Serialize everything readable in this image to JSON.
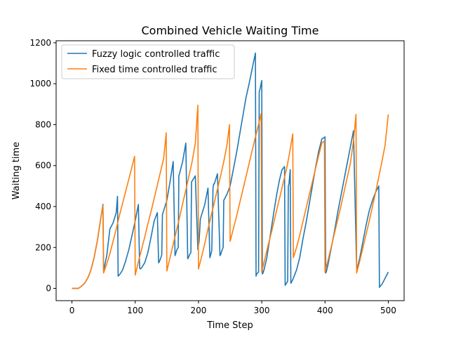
{
  "chart_data": {
    "type": "line",
    "title": "Combined Vehicle Waiting Time",
    "xlabel": "Time Step",
    "ylabel": "Waiting time",
    "xlim": [
      -25,
      525
    ],
    "ylim": [
      -60,
      1210
    ],
    "x_ticks": [
      0,
      100,
      200,
      300,
      400,
      500
    ],
    "y_ticks": [
      0,
      200,
      400,
      600,
      800,
      1000,
      1200
    ],
    "grid": false,
    "legend_position": "upper-left",
    "series": [
      {
        "name": "Fuzzy logic controlled traffic",
        "color": "#1f77b4",
        "x": [
          0,
          10,
          14,
          20,
          25,
          30,
          35,
          40,
          45,
          49,
          50,
          55,
          60,
          65,
          70,
          72,
          73,
          76,
          80,
          85,
          90,
          95,
          100,
          105,
          107,
          108,
          110,
          115,
          120,
          125,
          130,
          135,
          137,
          138,
          140,
          142,
          143,
          145,
          150,
          155,
          160,
          163,
          164,
          166,
          168,
          169,
          170,
          175,
          180,
          183,
          184,
          186,
          188,
          189,
          190,
          195,
          199,
          200,
          201,
          203,
          205,
          210,
          215,
          218,
          219,
          221,
          223,
          224,
          225,
          230,
          234,
          235,
          237,
          239,
          240,
          245,
          250,
          255,
          260,
          265,
          270,
          275,
          280,
          285,
          290,
          291,
          292,
          295,
          296,
          297,
          298,
          300,
          301,
          302,
          304,
          308,
          312,
          316,
          320,
          324,
          328,
          332,
          336,
          337,
          338,
          340,
          341,
          342,
          343,
          345,
          346,
          347,
          350,
          355,
          360,
          365,
          370,
          375,
          380,
          385,
          390,
          395,
          400,
          401,
          402,
          405,
          410,
          415,
          420,
          425,
          430,
          435,
          440,
          445,
          450,
          451,
          455,
          460,
          465,
          470,
          475,
          480,
          485,
          486,
          487,
          490,
          495,
          500
        ],
        "values": [
          0,
          0,
          8,
          25,
          50,
          90,
          150,
          230,
          330,
          410,
          85,
          160,
          290,
          320,
          370,
          450,
          60,
          70,
          90,
          135,
          190,
          260,
          330,
          410,
          100,
          95,
          100,
          125,
          175,
          250,
          330,
          370,
          125,
          130,
          145,
          165,
          360,
          380,
          430,
          520,
          620,
          160,
          170,
          190,
          200,
          550,
          560,
          620,
          710,
          145,
          150,
          165,
          175,
          520,
          525,
          550,
          190,
          210,
          230,
          340,
          360,
          410,
          490,
          150,
          160,
          185,
          490,
          510,
          510,
          560,
          160,
          165,
          185,
          200,
          430,
          460,
          500,
          580,
          660,
          750,
          840,
          930,
          1000,
          1075,
          1150,
          60,
          70,
          80,
          960,
          970,
          985,
          1015,
          70,
          75,
          95,
          150,
          230,
          310,
          390,
          465,
          530,
          580,
          595,
          15,
          20,
          30,
          35,
          500,
          510,
          580,
          25,
          30,
          50,
          90,
          150,
          240,
          320,
          410,
          500,
          590,
          670,
          730,
          740,
          75,
          80,
          120,
          200,
          280,
          370,
          450,
          530,
          610,
          690,
          770,
          90,
          100,
          150,
          230,
          310,
          380,
          430,
          470,
          500,
          5,
          10,
          20,
          50,
          80
        ]
      },
      {
        "name": "Fixed time controlled traffic",
        "color": "#ff7f0e",
        "x": [
          0,
          10,
          14,
          20,
          25,
          30,
          35,
          40,
          45,
          49,
          50,
          55,
          60,
          65,
          70,
          75,
          80,
          85,
          90,
          95,
          99,
          100,
          105,
          110,
          115,
          120,
          125,
          130,
          135,
          140,
          145,
          149,
          150,
          155,
          160,
          165,
          170,
          175,
          180,
          185,
          190,
          195,
          199,
          200,
          205,
          210,
          215,
          220,
          225,
          230,
          235,
          240,
          245,
          249,
          250,
          255,
          260,
          265,
          270,
          275,
          280,
          285,
          290,
          295,
          299,
          300,
          305,
          310,
          315,
          320,
          325,
          330,
          335,
          340,
          345,
          349,
          350,
          355,
          360,
          365,
          370,
          375,
          380,
          385,
          390,
          395,
          399,
          400,
          405,
          410,
          415,
          420,
          425,
          430,
          435,
          440,
          445,
          449,
          450,
          455,
          460,
          465,
          470,
          475,
          480,
          485,
          490,
          495,
          500
        ],
        "values": [
          0,
          0,
          8,
          25,
          50,
          90,
          150,
          230,
          330,
          405,
          75,
          120,
          170,
          230,
          290,
          355,
          415,
          475,
          535,
          595,
          645,
          65,
          130,
          190,
          250,
          315,
          375,
          440,
          505,
          570,
          635,
          760,
          85,
          150,
          215,
          280,
          345,
          415,
          480,
          550,
          620,
          710,
          895,
          95,
          155,
          220,
          290,
          355,
          420,
          485,
          550,
          620,
          700,
          800,
          230,
          290,
          350,
          415,
          480,
          545,
          610,
          675,
          740,
          800,
          855,
          80,
          145,
          210,
          270,
          335,
          400,
          465,
          530,
          595,
          680,
          755,
          150,
          200,
          260,
          325,
          390,
          455,
          520,
          585,
          650,
          710,
          720,
          80,
          140,
          205,
          270,
          335,
          400,
          470,
          540,
          610,
          720,
          850,
          75,
          135,
          200,
          265,
          330,
          400,
          470,
          545,
          620,
          700,
          850
        ]
      }
    ]
  }
}
